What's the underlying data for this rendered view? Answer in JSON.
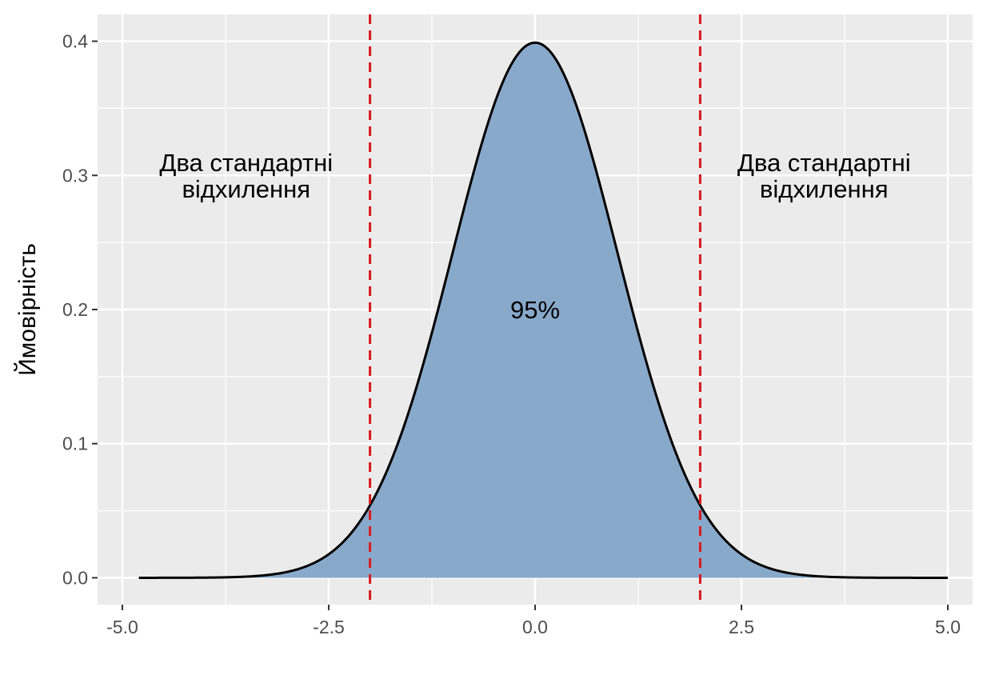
{
  "chart_data": {
    "type": "area",
    "title": "",
    "xlabel": "",
    "ylabel": "Ймовірність",
    "xlim": [
      -5.3,
      5.3
    ],
    "ylim": [
      -0.02,
      0.42
    ],
    "x_ticks": [
      -5.0,
      -2.5,
      0.0,
      2.5,
      5.0
    ],
    "x_tick_labels": [
      "-5.0",
      "-2.5",
      "0.0",
      "2.5",
      "5.0"
    ],
    "y_ticks": [
      0.0,
      0.1,
      0.2,
      0.3,
      0.4
    ],
    "y_tick_labels": [
      "0.0",
      "0.1",
      "0.2",
      "0.3",
      "0.4"
    ],
    "grid": true,
    "series": [
      {
        "distribution": "normal",
        "mean": 0,
        "sd": 1,
        "x_range": [
          -4.8,
          5.0
        ],
        "fill_range": [
          -5.0,
          5.0
        ],
        "fill_color": "#89A9CB",
        "line_color": "#000000"
      }
    ],
    "vlines": [
      {
        "x": -2.0,
        "color": "#D7191C",
        "style": "dashed"
      },
      {
        "x": 2.0,
        "color": "#D7191C",
        "style": "dashed"
      }
    ],
    "annotations": [
      {
        "x": -3.5,
        "y": 0.3,
        "lines": [
          "Два стандартні",
          "відхилення"
        ]
      },
      {
        "x": 3.5,
        "y": 0.3,
        "lines": [
          "Два стандартні",
          "відхилення"
        ]
      },
      {
        "x": 0.0,
        "y": 0.2,
        "lines": [
          "95%"
        ]
      }
    ],
    "colors": {
      "panel_background": "#EBEBEB",
      "grid": "#FFFFFF"
    }
  }
}
